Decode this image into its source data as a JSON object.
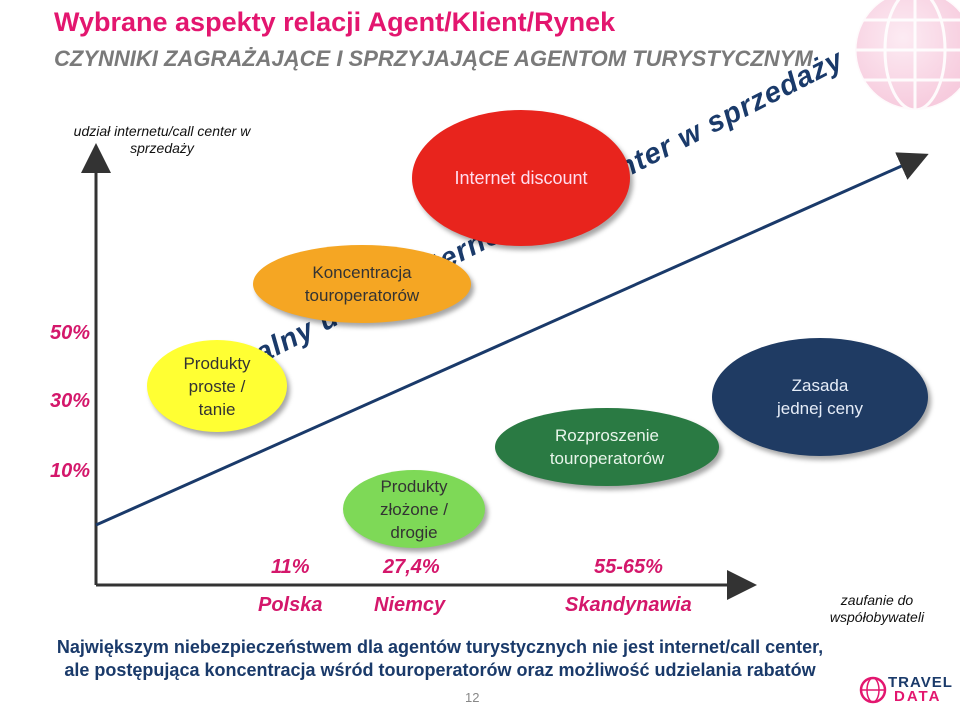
{
  "header": {
    "title": "Wybrane aspekty relacji Agent/Klient/Rynek",
    "subtitle": "CZYNNIKI ZAGRAŻAJĄCE I SPRZYJAJĄCE AGENTOM TURYSTYCZNYM"
  },
  "axes": {
    "y_label": "udział internetu/call center w sprzedaży",
    "x_label": "zaufanie do współobywateli",
    "y_ticks": [
      "50%",
      "30%",
      "10%"
    ]
  },
  "arrow_label": "Naturalny udział internetu/call center w sprzedaży",
  "ovals": {
    "internet": "Internet discount",
    "koncentracja": "Koncentracja touroperatorów",
    "proste": "Produkty proste / tanie",
    "zlozone": "Produkty złożone / drogie",
    "rozproszenie": "Rozproszenie touroperatorów",
    "zasada": "Zasada jednej ceny"
  },
  "countries": [
    {
      "name": "Polska",
      "value": "11%"
    },
    {
      "name": "Niemcy",
      "value": "27,4%"
    },
    {
      "name": "Skandynawia",
      "value": "55-65%"
    }
  ],
  "footer": {
    "line1": "Największym niebezpieczeństwem dla agentów turystycznych nie jest internet/call center,",
    "line2": "ale postępująca koncentracja wśród touroperatorów oraz możliwość udzielania rabatów"
  },
  "page_number": "12",
  "logo": {
    "line1": "TRAVEL",
    "line2": "DATA"
  },
  "colors": {
    "accent": "#e3166f",
    "navy": "#1a3a6a",
    "red": "#e8241d",
    "orange": "#f5a623",
    "yellow": "#ffff33",
    "green": "#7ed957",
    "darkgreen": "#2a7a43",
    "navyOval": "#1f3b63"
  }
}
